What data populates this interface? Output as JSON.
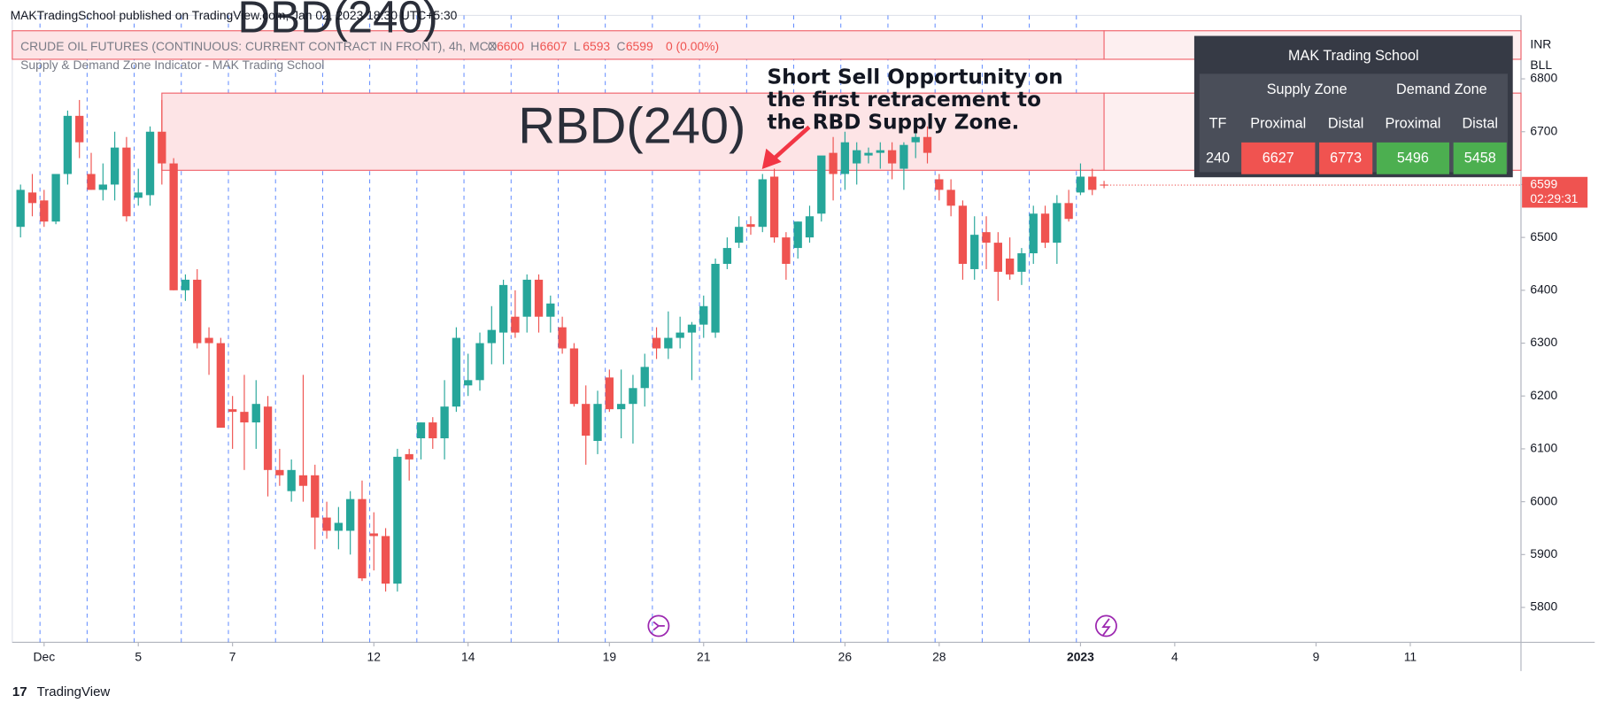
{
  "chart_data": {
    "type": "candlestick",
    "header": "MAKTradingSchool published on TradingView.com, Jan 02, 2023 18:30 UTC+5:30",
    "symbol": "CRUDE OIL FUTURES (CONTINUOUS: CURRENT CONTRACT IN FRONT), 4h, MCX",
    "ohlc_prefixes": [
      "O",
      "H",
      "L",
      "C"
    ],
    "change": "0 (0.00%)",
    "indicator": "Supply & Demand Zone Indicator - MAK Trading School",
    "annotation": [
      "Short Sell Opportunity on",
      "the first retracement to",
      "the RBD Supply Zone."
    ],
    "currency": "INR",
    "unit": "BLL",
    "countdown": "02:29:31",
    "brand": "TradingView",
    "up_color": "#26a69a",
    "down_color": "#ef5350",
    "open": [
      6520,
      6585,
      6570,
      6530,
      6620,
      6730,
      6620,
      6590,
      6600,
      6670,
      6575,
      6580,
      6700,
      6640,
      6400,
      6420,
      6310,
      6300,
      6175,
      6170,
      6150,
      6180,
      6060,
      6020,
      6050,
      6050,
      5970,
      5945,
      5945,
      6005,
      5940,
      5935,
      5845,
      6090,
      6120,
      6150,
      6120,
      6180,
      6220,
      6230,
      6300,
      6320,
      6350,
      6350,
      6420,
      6350,
      6330,
      6290,
      6185,
      6115,
      6235,
      6175,
      6185,
      6215,
      6310,
      6290,
      6310,
      6320,
      6335,
      6320,
      6450,
      6490,
      6525,
      6520,
      6615,
      6500,
      6480,
      6500,
      6545,
      6660,
      6620,
      6640,
      6655,
      6660,
      6665,
      6630,
      6680,
      6690,
      6610,
      6590,
      6560,
      6440,
      6510,
      6490,
      6460,
      6435,
      6470,
      6545,
      6490,
      6565,
      6585,
      6615,
      6600
    ],
    "high": [
      6600,
      6620,
      6590,
      6610,
      6740,
      6760,
      6660,
      6640,
      6700,
      6690,
      6630,
      6710,
      6760,
      6650,
      6430,
      6440,
      6330,
      6310,
      6200,
      6240,
      6230,
      6200,
      6100,
      6080,
      6240,
      6070,
      6000,
      5990,
      6020,
      6040,
      5980,
      5950,
      6100,
      6100,
      6150,
      6160,
      6230,
      6330,
      6280,
      6320,
      6370,
      6420,
      6400,
      6430,
      6430,
      6390,
      6350,
      6300,
      6220,
      6210,
      6250,
      6250,
      6240,
      6280,
      6330,
      6360,
      6350,
      6340,
      6390,
      6460,
      6500,
      6540,
      6540,
      6620,
      6630,
      6510,
      6530,
      6560,
      6650,
      6690,
      6700,
      6680,
      6670,
      6680,
      6680,
      6680,
      6720,
      6710,
      6620,
      6610,
      6570,
      6540,
      6540,
      6510,
      6500,
      6480,
      6560,
      6560,
      6580,
      6590,
      6640,
      6630,
      6607
    ],
    "low": [
      6500,
      6540,
      6520,
      6525,
      6600,
      6650,
      6590,
      6570,
      6570,
      6530,
      6560,
      6560,
      6600,
      6400,
      6380,
      6290,
      6240,
      6140,
      6100,
      6060,
      6100,
      6010,
      6030,
      6000,
      6000,
      5910,
      5930,
      5910,
      5900,
      5850,
      5870,
      5830,
      5830,
      6040,
      6080,
      6100,
      6080,
      6170,
      6200,
      6210,
      6260,
      6260,
      6310,
      6320,
      6320,
      6320,
      6280,
      6180,
      6070,
      6090,
      6170,
      6120,
      6110,
      6180,
      6270,
      6270,
      6290,
      6230,
      6310,
      6310,
      6440,
      6480,
      6505,
      6510,
      6490,
      6420,
      6460,
      6490,
      6530,
      6570,
      6590,
      6600,
      6640,
      6630,
      6610,
      6590,
      6650,
      6640,
      6570,
      6540,
      6420,
      6420,
      6440,
      6380,
      6420,
      6410,
      6450,
      6480,
      6450,
      6530,
      6580,
      6580,
      6593
    ],
    "close": [
      6590,
      6565,
      6530,
      6620,
      6730,
      6680,
      6590,
      6600,
      6670,
      6540,
      6585,
      6700,
      6640,
      6400,
      6420,
      6300,
      6300,
      6140,
      6170,
      6150,
      6185,
      6060,
      6050,
      6060,
      6030,
      5970,
      5945,
      5960,
      6005,
      5855,
      5935,
      5845,
      6085,
      6080,
      6150,
      6120,
      6180,
      6310,
      6230,
      6300,
      6325,
      6410,
      6320,
      6420,
      6350,
      6375,
      6290,
      6185,
      6125,
      6185,
      6175,
      6185,
      6215,
      6255,
      6290,
      6310,
      6320,
      6335,
      6370,
      6450,
      6480,
      6520,
      6520,
      6610,
      6500,
      6450,
      6530,
      6540,
      6655,
      6620,
      6680,
      6665,
      6660,
      6665,
      6640,
      6675,
      6690,
      6660,
      6590,
      6560,
      6450,
      6505,
      6490,
      6435,
      6430,
      6470,
      6545,
      6490,
      6565,
      6535,
      6615,
      6590,
      6599
    ],
    "zones": [
      {
        "label": "DBD(240)",
        "high": 6891,
        "low": 6837
      },
      {
        "label": "RBD(240)"
      }
    ],
    "zone_table": {
      "title": "MAK Trading School",
      "groups": [
        "Supply Zone",
        "Demand Zone"
      ],
      "headers": [
        "TF",
        "Proximal",
        "Distal",
        "Proximal",
        "Distal"
      ],
      "rows": [
        [
          "240",
          6627,
          6773,
          5496,
          5458
        ]
      ]
    },
    "ylim": [
      5734,
      6920
    ],
    "yticks": [
      5800,
      5900,
      6000,
      6100,
      6200,
      6300,
      6400,
      6500,
      6600,
      6700,
      6800
    ],
    "xlim": [
      -0.7,
      127.4
    ],
    "xticks": [
      {
        "value": 2,
        "label": "Dec"
      },
      {
        "value": 10,
        "label": "5"
      },
      {
        "value": 18,
        "label": "7"
      },
      {
        "value": 30,
        "label": "12"
      },
      {
        "value": 38,
        "label": "14"
      },
      {
        "value": 50,
        "label": "19"
      },
      {
        "value": 58,
        "label": "21"
      },
      {
        "value": 70,
        "label": "26"
      },
      {
        "value": 78,
        "label": "28"
      },
      {
        "value": 90,
        "label": "2023"
      },
      {
        "value": 98,
        "label": "4"
      },
      {
        "value": 110,
        "label": "9"
      },
      {
        "value": 118,
        "label": "11"
      }
    ]
  }
}
